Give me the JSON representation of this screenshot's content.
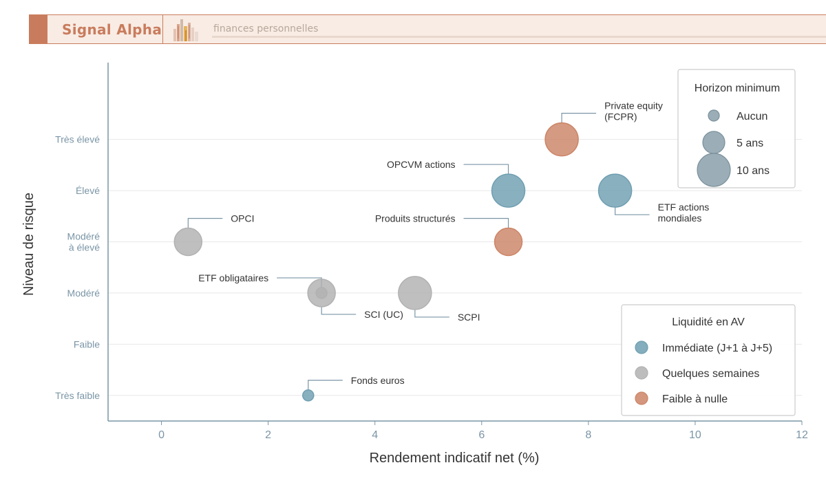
{
  "header": {
    "brand": "Signal Alpha",
    "tagline": "finances personnelles"
  },
  "colors": {
    "immediate": "#6f9fb1",
    "weeks": "#b1b1b1",
    "low": "#cc8466",
    "axis": "#7a95a6",
    "brand": "#c97c5d"
  },
  "chart_data": {
    "type": "scatter",
    "xlabel": "Rendement indicatif net (%)",
    "ylabel": "Niveau de risque",
    "xlim": [
      -1,
      12
    ],
    "ylim": [
      -0.5,
      6.5
    ],
    "xticks": [
      0,
      2,
      4,
      6,
      8,
      10,
      12
    ],
    "yticks": [
      {
        "value": 0,
        "label": [
          "Très faible"
        ]
      },
      {
        "value": 1,
        "label": [
          "Faible"
        ]
      },
      {
        "value": 2,
        "label": [
          "Modéré"
        ]
      },
      {
        "value": 3,
        "label": [
          "Modéré",
          "à élevé"
        ]
      },
      {
        "value": 4,
        "label": [
          "Élevé"
        ]
      },
      {
        "value": 5,
        "label": [
          "Très élevé"
        ]
      }
    ],
    "grid": "horizontal",
    "points": [
      {
        "label": [
          "Fonds euros"
        ],
        "x": 2.75,
        "y": 0,
        "horizon": "Aucun",
        "liquidity": "Immédiate (J+1 à J+5)",
        "label_side": "right-up"
      },
      {
        "label": [
          "SCI (UC)"
        ],
        "x": 3.0,
        "y": 2,
        "horizon": "5 ans",
        "liquidity": "Quelques semaines",
        "label_side": "right-down"
      },
      {
        "label": [
          "ETF obligataires"
        ],
        "x": 3.0,
        "y": 2,
        "horizon": "Aucun",
        "liquidity": "Quelques semaines",
        "label_side": "left-up"
      },
      {
        "label": [
          "SCPI"
        ],
        "x": 4.75,
        "y": 2,
        "horizon": "10 ans",
        "liquidity": "Quelques semaines",
        "label_side": "right-down"
      },
      {
        "label": [
          "OPCI"
        ],
        "x": 0.5,
        "y": 3,
        "horizon": "5 ans",
        "liquidity": "Quelques semaines",
        "label_side": "right-up"
      },
      {
        "label": [
          "Produits structurés"
        ],
        "x": 6.5,
        "y": 3,
        "horizon": "5 ans",
        "liquidity": "Faible à nulle",
        "label_side": "left-up"
      },
      {
        "label": [
          "OPCVM actions"
        ],
        "x": 6.5,
        "y": 4,
        "horizon": "10 ans",
        "liquidity": "Immédiate (J+1 à J+5)",
        "label_side": "left-up"
      },
      {
        "label": [
          "ETF actions",
          "mondiales"
        ],
        "x": 8.5,
        "y": 4,
        "horizon": "10 ans",
        "liquidity": "Immédiate (J+1 à J+5)",
        "label_side": "right-down"
      },
      {
        "label": [
          "Private equity",
          "(FCPR)"
        ],
        "x": 7.5,
        "y": 5,
        "horizon": "10 ans",
        "liquidity": "Faible à nulle",
        "label_side": "right-up"
      }
    ],
    "legend_horizon": {
      "title": "Horizon minimum",
      "entries": [
        "Aucun",
        "5 ans",
        "10 ans"
      ],
      "placement": "top-right"
    },
    "legend_liquidity": {
      "title": "Liquidité en AV",
      "entries": [
        "Immédiate (J+1 à J+5)",
        "Quelques semaines",
        "Faible à nulle"
      ],
      "placement": "bottom-right"
    }
  }
}
